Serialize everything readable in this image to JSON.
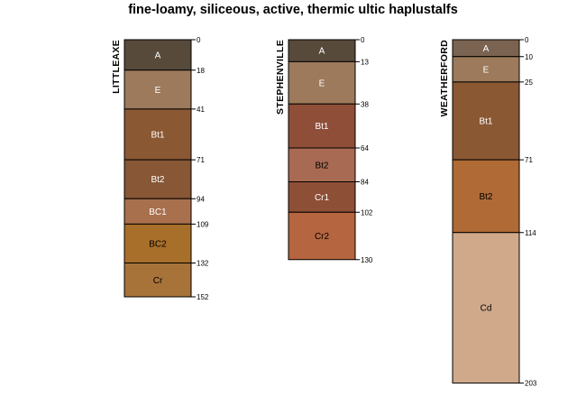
{
  "chart_data": {
    "type": "soil-profile",
    "title": "fine-loamy, siliceous, active, thermic ultic haplustalfs",
    "depth_units": "cm",
    "profiles": [
      {
        "name": "LITTLEAXE",
        "horizons": [
          {
            "name": "A",
            "top": 0,
            "bottom": 18,
            "color": "#574A3B",
            "text_color": "#ffffff"
          },
          {
            "name": "E",
            "top": 18,
            "bottom": 41,
            "color": "#9C7A5B",
            "text_color": "#ffffff"
          },
          {
            "name": "Bt1",
            "top": 41,
            "bottom": 71,
            "color": "#8B5834",
            "text_color": "#ffffff"
          },
          {
            "name": "Bt2",
            "top": 71,
            "bottom": 94,
            "color": "#875736",
            "text_color": "#ffffff"
          },
          {
            "name": "BC1",
            "top": 94,
            "bottom": 109,
            "color": "#A9704D",
            "text_color": "#ffffff"
          },
          {
            "name": "BC2",
            "top": 109,
            "bottom": 132,
            "color": "#A86F2A",
            "text_color": "#000000"
          },
          {
            "name": "Cr",
            "top": 132,
            "bottom": 152,
            "color": "#A87339",
            "text_color": "#000000"
          }
        ]
      },
      {
        "name": "STEPHENVILLE",
        "horizons": [
          {
            "name": "A",
            "top": 0,
            "bottom": 13,
            "color": "#574A3B",
            "text_color": "#ffffff"
          },
          {
            "name": "E",
            "top": 13,
            "bottom": 38,
            "color": "#9C7A5B",
            "text_color": "#ffffff"
          },
          {
            "name": "Bt1",
            "top": 38,
            "bottom": 64,
            "color": "#8F4E38",
            "text_color": "#ffffff"
          },
          {
            "name": "Bt2",
            "top": 64,
            "bottom": 84,
            "color": "#A86A52",
            "text_color": "#000000"
          },
          {
            "name": "Cr1",
            "top": 84,
            "bottom": 102,
            "color": "#8E4F37",
            "text_color": "#ffffff"
          },
          {
            "name": "Cr2",
            "top": 102,
            "bottom": 130,
            "color": "#B5653F",
            "text_color": "#000000"
          }
        ]
      },
      {
        "name": "WEATHERFORD",
        "horizons": [
          {
            "name": "A",
            "top": 0,
            "bottom": 10,
            "color": "#7A6351",
            "text_color": "#ffffff"
          },
          {
            "name": "E",
            "top": 10,
            "bottom": 25,
            "color": "#9C7A5B",
            "text_color": "#ffffff"
          },
          {
            "name": "Bt1",
            "top": 25,
            "bottom": 71,
            "color": "#8B5834",
            "text_color": "#ffffff"
          },
          {
            "name": "Bt2",
            "top": 71,
            "bottom": 114,
            "color": "#B06A35",
            "text_color": "#000000"
          },
          {
            "name": "Cd",
            "top": 114,
            "bottom": 203,
            "color": "#D0A98A",
            "text_color": "#000000"
          }
        ]
      }
    ]
  }
}
